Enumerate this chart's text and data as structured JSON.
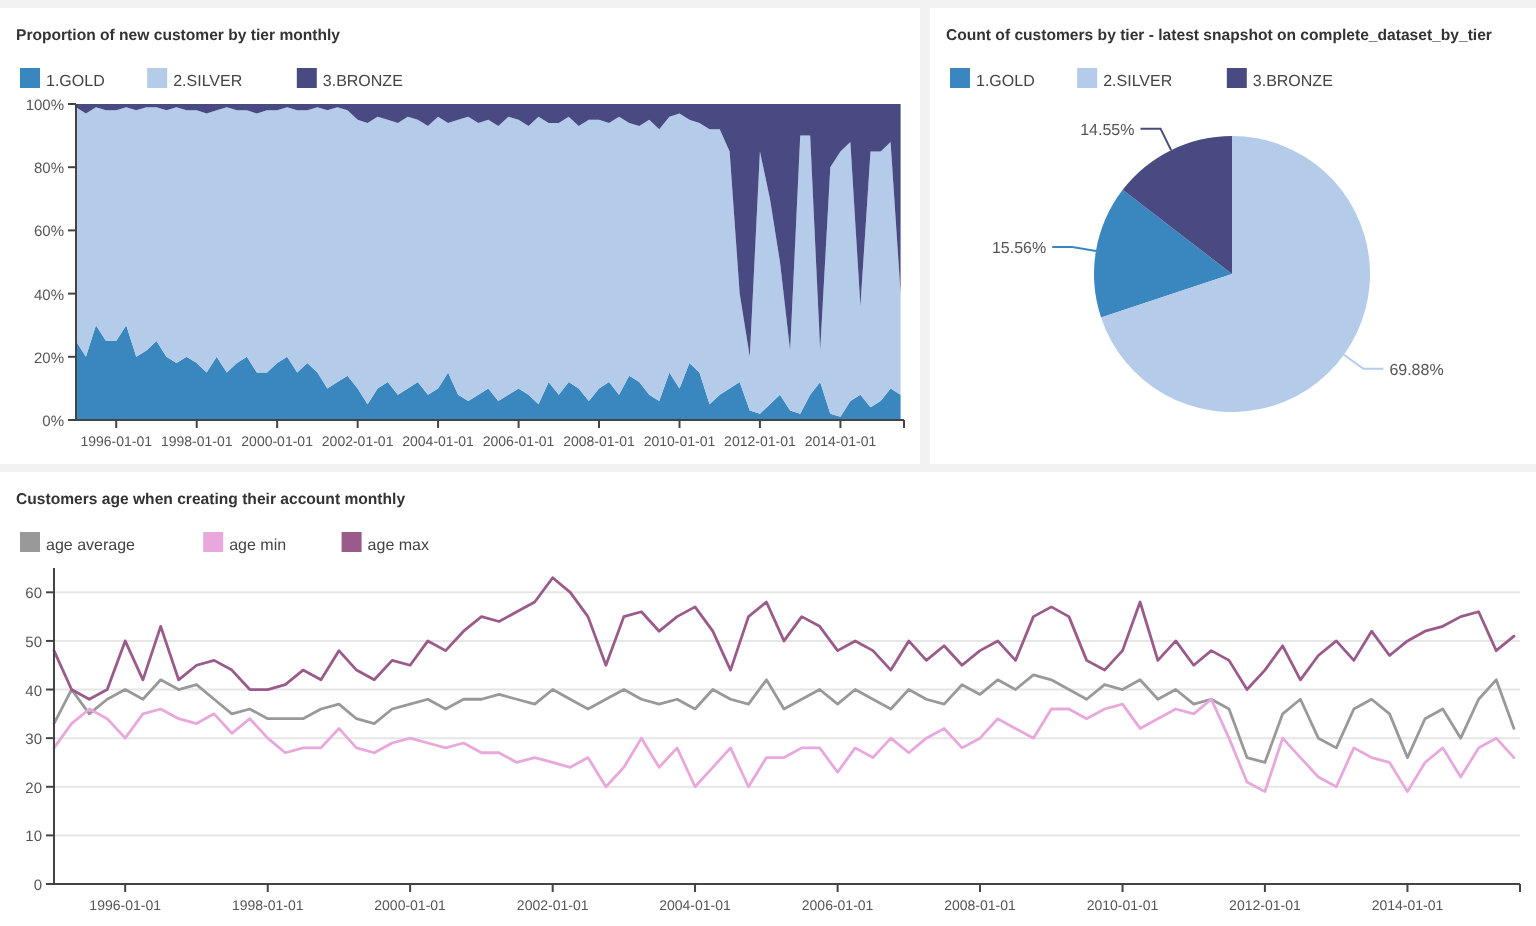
{
  "chart_data": [
    {
      "type": "area",
      "stacked": true,
      "title": "Proportion of new customer by tier monthly",
      "legend": "top left",
      "x": [
        "1995-01",
        "1995-04",
        "1995-07",
        "1995-10",
        "1996-01",
        "1996-04",
        "1996-07",
        "1996-10",
        "1997-01",
        "1997-04",
        "1997-07",
        "1997-10",
        "1998-01",
        "1998-04",
        "1998-07",
        "1998-10",
        "1999-01",
        "1999-04",
        "1999-07",
        "1999-10",
        "2000-01",
        "2000-04",
        "2000-07",
        "2000-10",
        "2001-01",
        "2001-04",
        "2001-07",
        "2001-10",
        "2002-01",
        "2002-04",
        "2002-07",
        "2002-10",
        "2003-01",
        "2003-04",
        "2003-07",
        "2003-10",
        "2004-01",
        "2004-04",
        "2004-07",
        "2004-10",
        "2005-01",
        "2005-04",
        "2005-07",
        "2005-10",
        "2006-01",
        "2006-04",
        "2006-07",
        "2006-10",
        "2007-01",
        "2007-04",
        "2007-07",
        "2007-10",
        "2008-01",
        "2008-04",
        "2008-07",
        "2008-10",
        "2009-01",
        "2009-04",
        "2009-07",
        "2009-10",
        "2010-01",
        "2010-04",
        "2010-07",
        "2010-10",
        "2011-01",
        "2011-04",
        "2011-07",
        "2011-10",
        "2012-01",
        "2012-04",
        "2012-07",
        "2012-10",
        "2013-01",
        "2013-04",
        "2013-07",
        "2013-10",
        "2014-01",
        "2014-04",
        "2014-07",
        "2014-10",
        "2015-01",
        "2015-04",
        "2015-07"
      ],
      "xlim": [
        "1995-01",
        "2015-08"
      ],
      "xticks": [
        {
          "value": "1996-01",
          "label": "1996-01-01"
        },
        {
          "value": "1998-01",
          "label": "1998-01-01"
        },
        {
          "value": "2000-01",
          "label": "2000-01-01"
        },
        {
          "value": "2002-01",
          "label": "2002-01-01"
        },
        {
          "value": "2004-01",
          "label": "2004-01-01"
        },
        {
          "value": "2006-01",
          "label": "2006-01-01"
        },
        {
          "value": "2008-01",
          "label": "2008-01-01"
        },
        {
          "value": "2010-01",
          "label": "2010-01-01"
        },
        {
          "value": "2012-01",
          "label": "2012-01-01"
        },
        {
          "value": "2014-01",
          "label": "2014-01-01"
        }
      ],
      "ylim": [
        0,
        100
      ],
      "yticks": [
        {
          "value": 0,
          "label": "0%"
        },
        {
          "value": 20,
          "label": "20%"
        },
        {
          "value": 40,
          "label": "40%"
        },
        {
          "value": 60,
          "label": "60%"
        },
        {
          "value": 80,
          "label": "80%"
        },
        {
          "value": 100,
          "label": "100%"
        }
      ],
      "series": [
        {
          "name": "1.GOLD",
          "color": "#3a87c0",
          "values": [
            25,
            20,
            30,
            25,
            25,
            30,
            20,
            22,
            25,
            20,
            18,
            20,
            18,
            15,
            20,
            15,
            18,
            20,
            15,
            15,
            18,
            20,
            15,
            18,
            15,
            10,
            12,
            14,
            10,
            5,
            10,
            12,
            8,
            10,
            12,
            8,
            10,
            15,
            8,
            6,
            8,
            10,
            6,
            8,
            10,
            8,
            5,
            12,
            8,
            12,
            10,
            6,
            10,
            12,
            8,
            14,
            12,
            8,
            6,
            15,
            10,
            18,
            15,
            5,
            8,
            10,
            12,
            3,
            2,
            5,
            8,
            3,
            2,
            8,
            12,
            2,
            1,
            6,
            8,
            4,
            6,
            10,
            8
          ]
        },
        {
          "name": "2.SILVER",
          "color": "#b4cbea",
          "values": [
            74,
            77,
            69,
            73,
            73,
            69,
            78,
            77,
            74,
            78,
            81,
            78,
            80,
            82,
            78,
            84,
            80,
            78,
            82,
            83,
            80,
            79,
            83,
            80,
            84,
            88,
            87,
            84,
            85,
            89,
            86,
            83,
            86,
            86,
            83,
            85,
            86,
            79,
            87,
            90,
            86,
            85,
            87,
            88,
            85,
            85,
            91,
            82,
            86,
            84,
            83,
            89,
            85,
            82,
            88,
            80,
            81,
            87,
            86,
            81,
            87,
            77,
            79,
            87,
            84,
            75,
            28,
            17,
            83,
            65,
            42,
            19,
            88,
            82,
            10,
            78,
            84,
            82,
            28,
            81,
            79,
            78,
            32
          ]
        },
        {
          "name": "3.BRONZE",
          "color": "#4a4a82",
          "values": [
            1,
            3,
            1,
            2,
            2,
            1,
            2,
            1,
            1,
            2,
            1,
            2,
            2,
            3,
            2,
            1,
            2,
            2,
            3,
            2,
            2,
            1,
            2,
            2,
            1,
            2,
            1,
            2,
            5,
            6,
            4,
            5,
            6,
            4,
            5,
            7,
            4,
            6,
            5,
            4,
            6,
            5,
            7,
            4,
            5,
            7,
            4,
            6,
            6,
            4,
            7,
            5,
            5,
            6,
            4,
            6,
            7,
            5,
            8,
            4,
            3,
            5,
            6,
            8,
            8,
            15,
            60,
            80,
            15,
            30,
            50,
            78,
            10,
            10,
            78,
            20,
            15,
            12,
            64,
            15,
            15,
            12,
            60
          ]
        }
      ]
    },
    {
      "type": "pie",
      "title": "Count of customers by tier - latest snapshot on complete_dataset_by_tier",
      "legend": "top left",
      "categories": [
        "1.GOLD",
        "2.SILVER",
        "3.BRONZE"
      ],
      "values": [
        15.56,
        69.88,
        14.55
      ],
      "colors": [
        "#3a87c0",
        "#b4cbea",
        "#4a4a82"
      ],
      "value_labels": [
        "15.56%",
        "69.88%",
        "14.55%"
      ]
    },
    {
      "type": "line",
      "title": "Customers age when creating their account monthly",
      "legend": "top left",
      "grid": "y",
      "line_style": "solid",
      "x": [
        "1995-01",
        "1995-04",
        "1995-07",
        "1995-10",
        "1996-01",
        "1996-04",
        "1996-07",
        "1996-10",
        "1997-01",
        "1997-04",
        "1997-07",
        "1997-10",
        "1998-01",
        "1998-04",
        "1998-07",
        "1998-10",
        "1999-01",
        "1999-04",
        "1999-07",
        "1999-10",
        "2000-01",
        "2000-04",
        "2000-07",
        "2000-10",
        "2001-01",
        "2001-04",
        "2001-07",
        "2001-10",
        "2002-01",
        "2002-04",
        "2002-07",
        "2002-10",
        "2003-01",
        "2003-04",
        "2003-07",
        "2003-10",
        "2004-01",
        "2004-04",
        "2004-07",
        "2004-10",
        "2005-01",
        "2005-04",
        "2005-07",
        "2005-10",
        "2006-01",
        "2006-04",
        "2006-07",
        "2006-10",
        "2007-01",
        "2007-04",
        "2007-07",
        "2007-10",
        "2008-01",
        "2008-04",
        "2008-07",
        "2008-10",
        "2009-01",
        "2009-04",
        "2009-07",
        "2009-10",
        "2010-01",
        "2010-04",
        "2010-07",
        "2010-10",
        "2011-01",
        "2011-04",
        "2011-07",
        "2011-10",
        "2012-01",
        "2012-04",
        "2012-07",
        "2012-10",
        "2013-01",
        "2013-04",
        "2013-07",
        "2013-10",
        "2014-01",
        "2014-04",
        "2014-07",
        "2014-10",
        "2015-01",
        "2015-04",
        "2015-07"
      ],
      "xlim": [
        "1995-01",
        "2015-08"
      ],
      "xticks": [
        {
          "value": "1996-01",
          "label": "1996-01-01"
        },
        {
          "value": "1998-01",
          "label": "1998-01-01"
        },
        {
          "value": "2000-01",
          "label": "2000-01-01"
        },
        {
          "value": "2002-01",
          "label": "2002-01-01"
        },
        {
          "value": "2004-01",
          "label": "2004-01-01"
        },
        {
          "value": "2006-01",
          "label": "2006-01-01"
        },
        {
          "value": "2008-01",
          "label": "2008-01-01"
        },
        {
          "value": "2010-01",
          "label": "2010-01-01"
        },
        {
          "value": "2012-01",
          "label": "2012-01-01"
        },
        {
          "value": "2014-01",
          "label": "2014-01-01"
        }
      ],
      "ylim": [
        0,
        65
      ],
      "yticks": [
        0,
        10,
        20,
        30,
        40,
        50,
        60
      ],
      "series": [
        {
          "name": "age average",
          "color": "#999999",
          "values": [
            33,
            40,
            35,
            38,
            40,
            38,
            42,
            40,
            41,
            38,
            35,
            36,
            34,
            34,
            34,
            36,
            37,
            34,
            33,
            36,
            37,
            38,
            36,
            38,
            38,
            39,
            38,
            37,
            40,
            38,
            36,
            38,
            40,
            38,
            37,
            38,
            36,
            40,
            38,
            37,
            42,
            36,
            38,
            40,
            37,
            40,
            38,
            36,
            40,
            38,
            37,
            41,
            39,
            42,
            40,
            43,
            42,
            40,
            38,
            41,
            40,
            42,
            38,
            40,
            37,
            38,
            36,
            26,
            25,
            35,
            38,
            30,
            28,
            36,
            38,
            35,
            26,
            34,
            36,
            30,
            38,
            42,
            32
          ]
        },
        {
          "name": "age min",
          "color": "#e8a8dc",
          "values": [
            28,
            33,
            36,
            34,
            30,
            35,
            36,
            34,
            33,
            35,
            31,
            34,
            30,
            27,
            28,
            28,
            32,
            28,
            27,
            29,
            30,
            29,
            28,
            29,
            27,
            27,
            25,
            26,
            25,
            24,
            26,
            20,
            24,
            30,
            24,
            28,
            20,
            24,
            28,
            20,
            26,
            26,
            28,
            28,
            23,
            28,
            26,
            30,
            27,
            30,
            32,
            28,
            30,
            34,
            32,
            30,
            36,
            36,
            34,
            36,
            37,
            32,
            34,
            36,
            35,
            38,
            30,
            21,
            19,
            30,
            26,
            22,
            20,
            28,
            26,
            25,
            19,
            25,
            28,
            22,
            28,
            30,
            26
          ]
        },
        {
          "name": "age max",
          "color": "#9a5a8a",
          "values": [
            48,
            40,
            38,
            40,
            50,
            42,
            53,
            42,
            45,
            46,
            44,
            40,
            40,
            41,
            44,
            42,
            48,
            44,
            42,
            46,
            45,
            50,
            48,
            52,
            55,
            54,
            56,
            58,
            63,
            60,
            55,
            45,
            55,
            56,
            52,
            55,
            57,
            52,
            44,
            55,
            58,
            50,
            55,
            53,
            48,
            50,
            48,
            44,
            50,
            46,
            49,
            45,
            48,
            50,
            46,
            55,
            57,
            55,
            46,
            44,
            48,
            58,
            46,
            50,
            45,
            48,
            46,
            40,
            44,
            49,
            42,
            47,
            50,
            46,
            52,
            47,
            50,
            52,
            53,
            55,
            56,
            48,
            51
          ]
        }
      ]
    }
  ]
}
